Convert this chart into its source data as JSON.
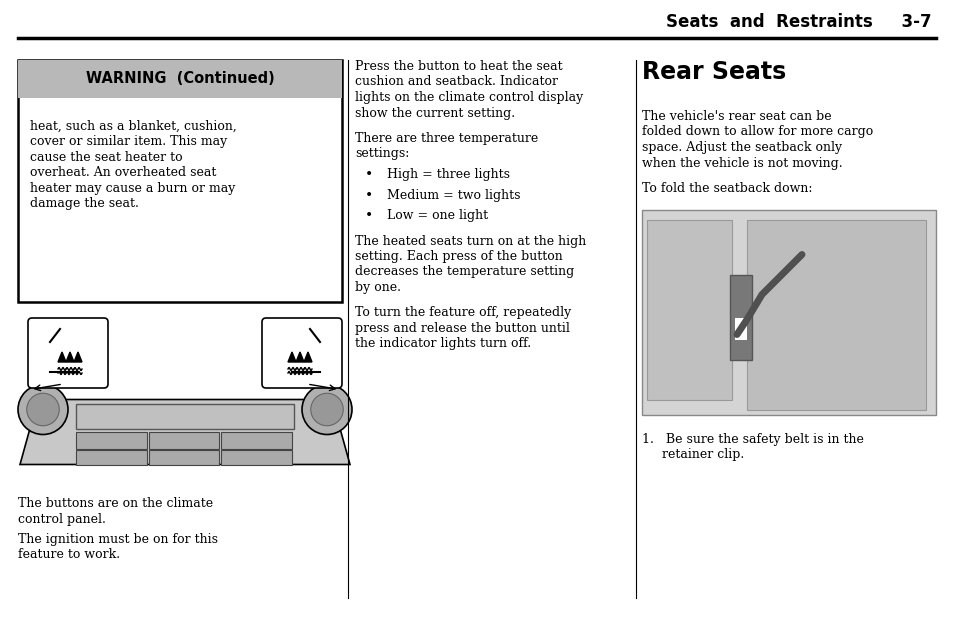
{
  "bg_color": "#ffffff",
  "page_width": 9.54,
  "page_height": 6.38,
  "header_text": "Seats  and  Restraints     3-7",
  "header_fontsize": 12,
  "warning_title": "WARNING  (Continued)",
  "warning_body_lines": [
    "heat, such as a blanket, cushion,",
    "cover or similar item. This may",
    "cause the seat heater to",
    "overheat. An overheated seat",
    "heater may cause a burn or may",
    "damage the seat."
  ],
  "col2_para1_lines": [
    "Press the button to heat the seat",
    "cushion and seatback. Indicator",
    "lights on the climate control display",
    "show the current setting."
  ],
  "col2_para2_lines": [
    "There are three temperature",
    "settings:"
  ],
  "col2_bullets": [
    "High = three lights",
    "Medium = two lights",
    "Low = one light"
  ],
  "col2_para3_lines": [
    "The heated seats turn on at the high",
    "setting. Each press of the button",
    "decreases the temperature setting",
    "by one."
  ],
  "col2_para4_lines": [
    "To turn the feature off, repeatedly",
    "press and release the button until",
    "the indicator lights turn off."
  ],
  "col1_caption1_lines": [
    "The buttons are on the climate",
    "control panel."
  ],
  "col1_caption2_lines": [
    "The ignition must be on for this",
    "feature to work."
  ],
  "col3_heading": "Rear Seats",
  "col3_para1_lines": [
    "The vehicle's rear seat can be",
    "folded down to allow for more cargo",
    "space. Adjust the seatback only",
    "when the vehicle is not moving."
  ],
  "col3_para2": "To fold the seatback down:",
  "col3_step1_lines": [
    "1.   Be sure the safety belt is in the",
    "     retainer clip."
  ],
  "text_fontsize": 9.0,
  "body_font": "DejaVu Serif",
  "warn_font": "DejaVu Sans"
}
